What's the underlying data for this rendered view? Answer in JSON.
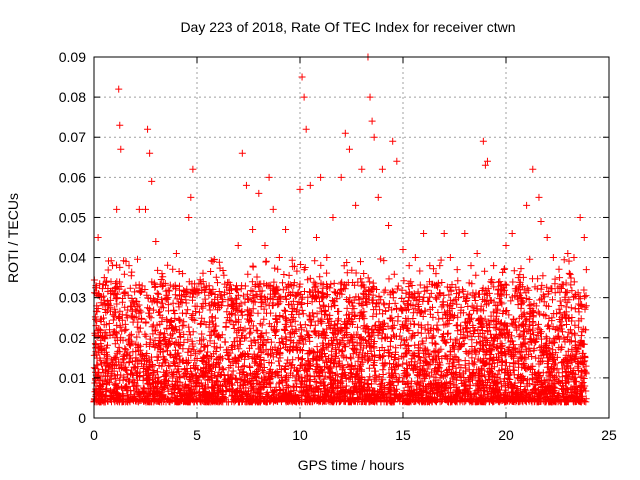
{
  "chart_data": {
    "type": "scatter",
    "title": "Day 223 of 2018, Rate Of TEC Index for receiver ctwn",
    "xlabel": "GPS time / hours",
    "ylabel": "ROTI / TECUs",
    "xlim": [
      0,
      25
    ],
    "ylim": [
      0,
      0.09
    ],
    "xticks": [
      "0",
      "5",
      "10",
      "15",
      "20",
      "25"
    ],
    "yticks": [
      "0",
      "0.01",
      "0.02",
      "0.03",
      "0.04",
      "0.05",
      "0.06",
      "0.07",
      "0.08",
      "0.09"
    ],
    "grid": true,
    "marker": "plus",
    "color": "#ff0000",
    "series": [
      {
        "x": [
          0.1,
          0.2,
          0.3,
          0.5,
          0.7,
          0.9,
          1.1,
          1.2,
          1.25,
          1.3,
          1.5,
          1.7,
          2.0,
          2.2,
          2.5,
          2.6,
          2.7,
          2.8,
          3.0,
          3.3,
          3.6,
          4.0,
          4.3,
          4.6,
          4.7,
          4.8,
          5.0,
          5.3,
          5.6,
          6.0,
          6.5,
          7.0,
          7.2,
          7.4,
          7.7,
          8.0,
          8.3,
          8.5,
          8.7,
          9.0,
          9.3,
          9.6,
          10.0,
          10.1,
          10.2,
          10.3,
          10.5,
          10.8,
          11.0,
          11.3,
          11.6,
          12.0,
          12.2,
          12.4,
          12.7,
          13.0,
          13.3,
          13.4,
          13.5,
          13.6,
          13.8,
          14.0,
          14.3,
          14.5,
          14.7,
          15.0,
          15.3,
          15.6,
          16.0,
          16.3,
          16.6,
          17.0,
          17.3,
          17.6,
          18.0,
          18.3,
          18.6,
          18.9,
          19.0,
          19.1,
          19.4,
          19.7,
          20.0,
          20.3,
          20.6,
          21.0,
          21.3,
          21.6,
          21.7,
          22.0,
          22.3,
          22.6,
          23.0,
          23.3,
          23.6,
          23.8,
          23.9
        ],
        "y": [
          0.031,
          0.045,
          0.022,
          0.035,
          0.028,
          0.038,
          0.052,
          0.082,
          0.073,
          0.067,
          0.031,
          0.038,
          0.027,
          0.052,
          0.052,
          0.072,
          0.066,
          0.059,
          0.044,
          0.036,
          0.03,
          0.041,
          0.036,
          0.05,
          0.055,
          0.062,
          0.032,
          0.034,
          0.028,
          0.027,
          0.028,
          0.043,
          0.066,
          0.058,
          0.047,
          0.056,
          0.043,
          0.06,
          0.052,
          0.04,
          0.047,
          0.033,
          0.057,
          0.085,
          0.08,
          0.072,
          0.058,
          0.045,
          0.06,
          0.04,
          0.05,
          0.06,
          0.071,
          0.067,
          0.053,
          0.062,
          0.09,
          0.08,
          0.074,
          0.07,
          0.055,
          0.062,
          0.048,
          0.069,
          0.064,
          0.042,
          0.038,
          0.04,
          0.046,
          0.038,
          0.036,
          0.046,
          0.04,
          0.031,
          0.046,
          0.038,
          0.041,
          0.069,
          0.063,
          0.064,
          0.038,
          0.034,
          0.043,
          0.046,
          0.035,
          0.053,
          0.062,
          0.055,
          0.049,
          0.045,
          0.04,
          0.035,
          0.041,
          0.04,
          0.05,
          0.045,
          0.037
        ]
      }
    ]
  }
}
